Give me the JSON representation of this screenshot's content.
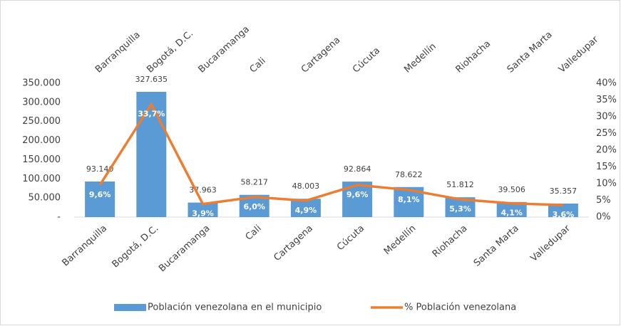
{
  "chart_data": {
    "type": "bar_line",
    "categories": [
      "Barranquilla",
      "Bogotá, D.C.",
      "Bucaramanga",
      "Cali",
      "Cartagena",
      "Cúcuta",
      "Medellín",
      "Riohacha",
      "Santa Marta",
      "Valledupar"
    ],
    "series": [
      {
        "name": "Población venezolana en el municipio",
        "type": "bar",
        "color": "#5b9bd5",
        "values": [
          93140,
          327635,
          37963,
          58217,
          48003,
          92864,
          78622,
          51812,
          39506,
          35357
        ],
        "value_labels": [
          "93.140",
          "327.635",
          "37.963",
          "58.217",
          "48.003",
          "92.864",
          "78.622",
          "51.812",
          "39.506",
          "35.357"
        ]
      },
      {
        "name": "% Población venezolana",
        "type": "line",
        "axis": "y2",
        "color": "#ed7d31",
        "values": [
          9.6,
          33.7,
          3.9,
          6.0,
          4.9,
          9.6,
          8.1,
          5.3,
          4.1,
          3.6
        ],
        "value_labels": [
          "9,6%",
          "33,7%",
          "3,9%",
          "6,0%",
          "4,9%",
          "9,6%",
          "8,1%",
          "5,3%",
          "4,1%",
          "3,6%"
        ]
      }
    ],
    "ylim": [
      0,
      350000
    ],
    "yticks": [
      {
        "value": 0,
        "label": "-"
      },
      {
        "value": 50000,
        "label": "50.000"
      },
      {
        "value": 100000,
        "label": "100.000"
      },
      {
        "value": 150000,
        "label": "150.000"
      },
      {
        "value": 200000,
        "label": "200.000"
      },
      {
        "value": 250000,
        "label": "250.000"
      },
      {
        "value": 300000,
        "label": "300.000"
      },
      {
        "value": 350000,
        "label": "350.000"
      }
    ],
    "y2lim": [
      0,
      40
    ],
    "y2ticks": [
      {
        "value": 0,
        "label": "0%"
      },
      {
        "value": 5,
        "label": "5%"
      },
      {
        "value": 10,
        "label": "10%"
      },
      {
        "value": 15,
        "label": "15%"
      },
      {
        "value": 20,
        "label": "20%"
      },
      {
        "value": 25,
        "label": "25%"
      },
      {
        "value": 30,
        "label": "30%"
      },
      {
        "value": 35,
        "label": "35%"
      },
      {
        "value": 40,
        "label": "40%"
      }
    ],
    "legend": "bottom"
  }
}
